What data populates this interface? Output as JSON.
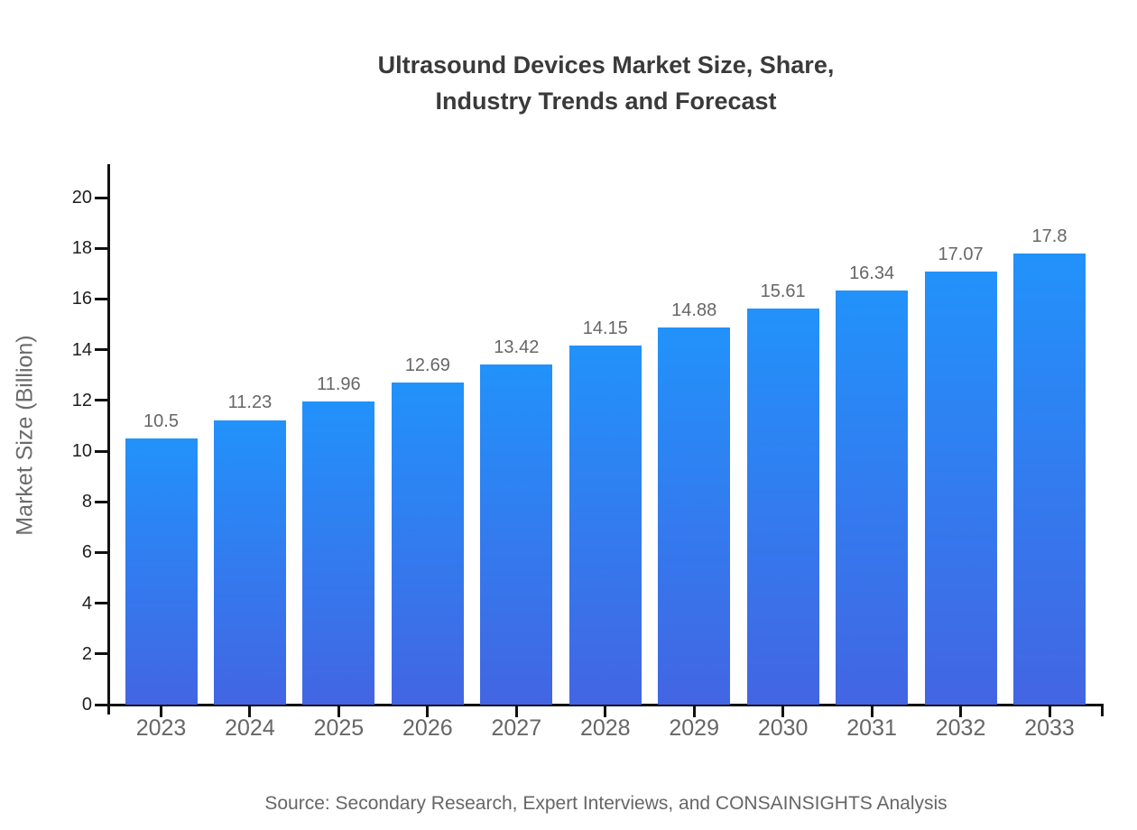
{
  "page": {
    "title_line1": "Ultrasound Devices Market Size, Share,",
    "title_line2": "Industry Trends and Forecast",
    "source": "Source: Secondary Research, Expert Interviews, and CONSAINSIGHTS Analysis"
  },
  "chart_data": {
    "type": "bar",
    "title": "Ultrasound Devices Market Size, Share, Industry Trends and Forecast",
    "categories": [
      "2023",
      "2024",
      "2025",
      "2026",
      "2027",
      "2028",
      "2029",
      "2030",
      "2031",
      "2032",
      "2033"
    ],
    "values": [
      10.5,
      11.23,
      11.96,
      12.69,
      13.42,
      14.15,
      14.88,
      15.61,
      16.34,
      17.07,
      17.8
    ],
    "value_labels": [
      "10.5",
      "11.23",
      "11.96",
      "12.69",
      "13.42",
      "14.15",
      "14.88",
      "15.61",
      "16.34",
      "17.07",
      "17.8"
    ],
    "xlabel": "",
    "ylabel": "Market Size (Billion)",
    "ylim": [
      0,
      21.32
    ],
    "yticks": [
      0,
      2,
      4,
      6,
      8,
      10,
      12,
      14,
      16,
      18,
      20
    ],
    "grid": false,
    "legend": false,
    "colors": {
      "bar_gradient_top": "#2292fa",
      "bar_gradient_bottom": "#4365e3",
      "axis": "#111111",
      "tick_label": "#1f1f1f",
      "gray_text": "#666666",
      "title_text": "#3a3a3a"
    },
    "source": "Source: Secondary Research, Expert Interviews, and CONSAINSIGHTS Analysis"
  }
}
